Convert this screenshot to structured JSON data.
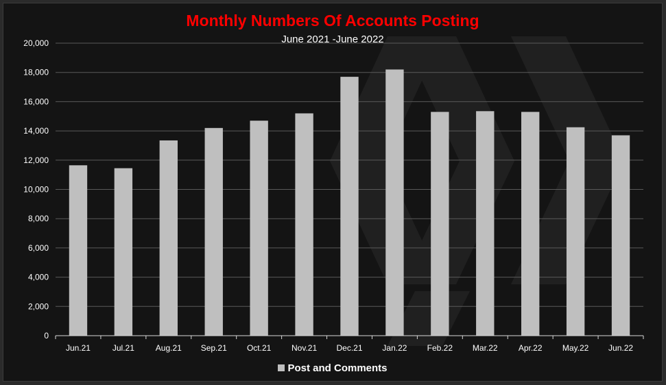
{
  "colors": {
    "background": "#141414",
    "title": "#ff0000",
    "bar": "#bfbfbf",
    "gridline": "#5a5a5a",
    "text": "#ffffff"
  },
  "chart_data": {
    "type": "bar",
    "title": "Monthly Numbers Of Accounts Posting",
    "subtitle": "June 2021 -June 2022",
    "categories": [
      "Jun.21",
      "Jul.21",
      "Aug.21",
      "Sep.21",
      "Oct.21",
      "Nov.21",
      "Dec.21",
      "Jan.22",
      "Feb.22",
      "Mar.22",
      "Apr.22",
      "May.22",
      "Jun.22"
    ],
    "series": [
      {
        "name": "Post and Comments",
        "values": [
          11650,
          11450,
          13350,
          14200,
          14700,
          15200,
          17700,
          18200,
          15300,
          15350,
          15300,
          14250,
          13700
        ]
      }
    ],
    "ylim": [
      0,
      20000
    ],
    "yticks": [
      "0",
      "2,000",
      "4,000",
      "6,000",
      "8,000",
      "10,000",
      "12,000",
      "14,000",
      "16,000",
      "18,000",
      "20,000"
    ],
    "grid": true,
    "legend_position": "bottom"
  }
}
